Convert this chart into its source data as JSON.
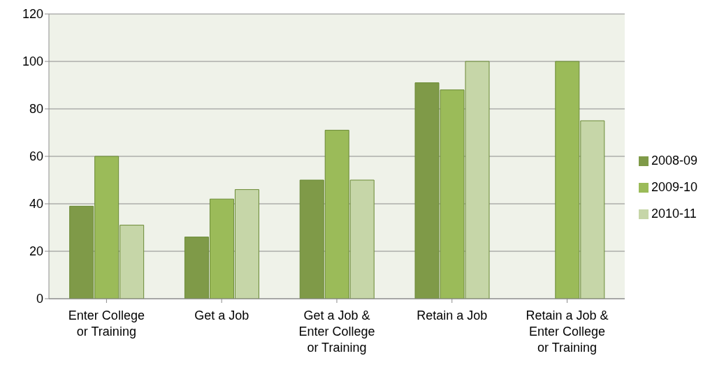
{
  "chart_data": {
    "type": "bar",
    "categories": [
      "Enter College or Training",
      "Get a Job",
      "Get a Job & Enter College or Training",
      "Retain a Job",
      "Retain a Job & Enter College or Training"
    ],
    "series": [
      {
        "name": "2008-09",
        "color": "#7f9a48",
        "values": [
          39,
          26,
          50,
          91,
          null
        ]
      },
      {
        "name": "2009-10",
        "color": "#9bbb59",
        "values": [
          60,
          42,
          71,
          88,
          100
        ]
      },
      {
        "name": "2010-11",
        "color": "#c6d6a8",
        "values": [
          31,
          46,
          50,
          100,
          75
        ]
      }
    ],
    "ylim": [
      0,
      120
    ],
    "yticks": [
      0,
      20,
      40,
      60,
      80,
      100,
      120
    ],
    "grid": "y",
    "legend": "right"
  }
}
